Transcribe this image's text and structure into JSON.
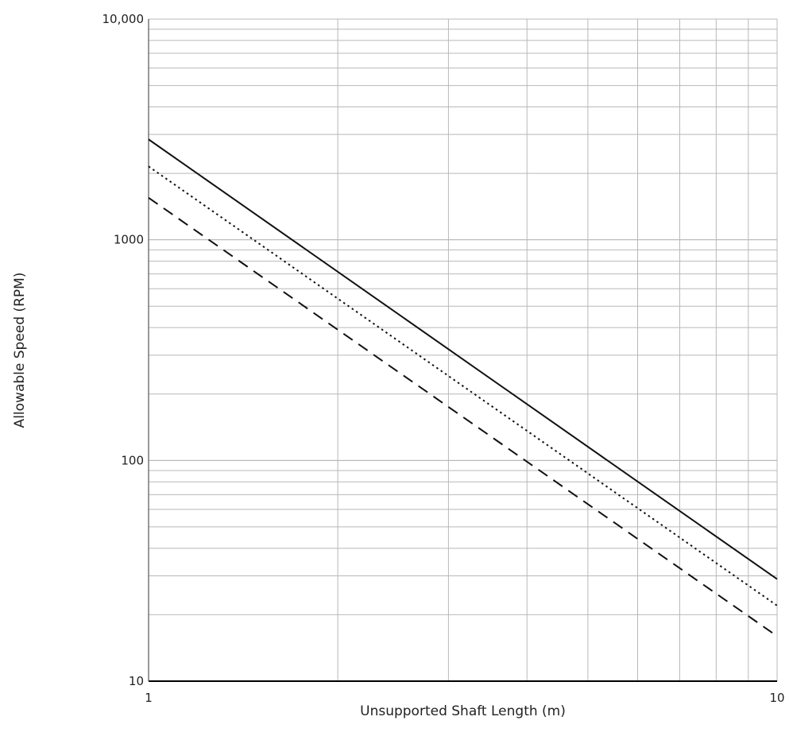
{
  "chart_data": {
    "type": "line",
    "title": "",
    "xlabel": "Unsupported Shaft Length (m)",
    "ylabel": "Allowable Speed (RPM)",
    "x_scale": "log",
    "y_scale": "log",
    "xlim": [
      1,
      10
    ],
    "ylim": [
      10,
      10000
    ],
    "x_ticks": [
      {
        "value": 1,
        "label": "1"
      },
      {
        "value": 10,
        "label": "10"
      }
    ],
    "y_ticks": [
      {
        "value": 10,
        "label": "10"
      },
      {
        "value": 100,
        "label": "100"
      },
      {
        "value": 1000,
        "label": "1000"
      },
      {
        "value": 10000,
        "label": "10,000"
      }
    ],
    "grid": true,
    "legend": false,
    "series": [
      {
        "style": "solid",
        "x": [
          1,
          10
        ],
        "y": [
          2850,
          29
        ]
      },
      {
        "style": "dotted",
        "x": [
          1,
          10
        ],
        "y": [
          2150,
          22
        ]
      },
      {
        "style": "dashed",
        "x": [
          1,
          10
        ],
        "y": [
          1550,
          16
        ]
      }
    ],
    "colors": {
      "line": "#111111",
      "grid": "#b8b8b8",
      "axis": "#000000"
    }
  }
}
